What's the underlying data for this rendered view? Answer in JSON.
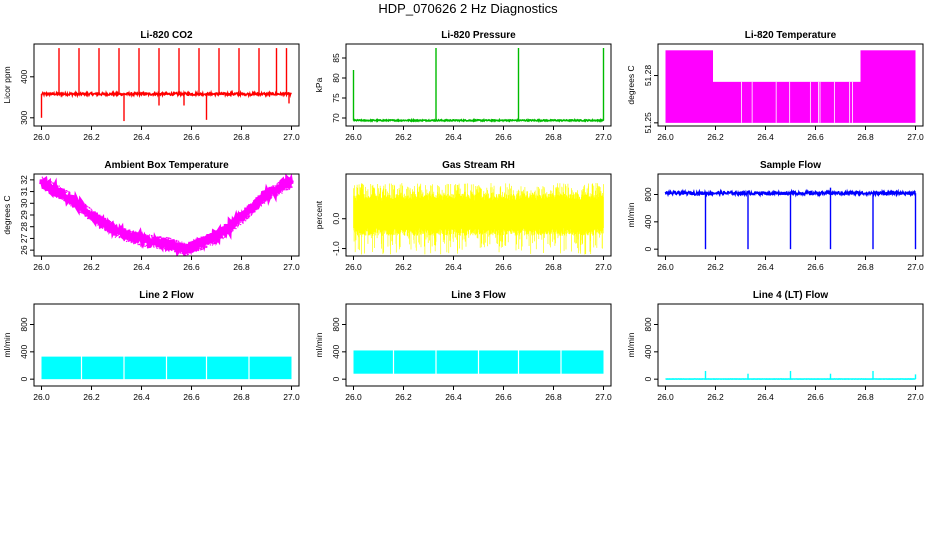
{
  "figure": {
    "title": "HDP_070626 2 Hz Diagnostics"
  },
  "chart_data": [
    {
      "type": "line",
      "title": "Li-820 CO2",
      "ylabel": "Licor ppm",
      "color": "#ff0000",
      "xlim": [
        25.97,
        27.03
      ],
      "ylim": [
        280,
        480
      ],
      "xticks": [
        "26.0",
        "26.2",
        "26.4",
        "26.6",
        "26.8",
        "27.0"
      ],
      "yticks": [
        300,
        400
      ],
      "baseline": 358,
      "noise": 3,
      "trend": "flat",
      "spikes_up": [
        [
          26.07,
          470
        ],
        [
          26.15,
          470
        ],
        [
          26.23,
          470
        ],
        [
          26.31,
          470
        ],
        [
          26.39,
          470
        ],
        [
          26.47,
          470
        ],
        [
          26.55,
          470
        ],
        [
          26.63,
          470
        ],
        [
          26.71,
          470
        ],
        [
          26.79,
          470
        ],
        [
          26.87,
          470
        ],
        [
          26.94,
          470
        ],
        [
          26.98,
          470
        ]
      ],
      "spikes_down": [
        [
          26.0,
          300
        ],
        [
          26.33,
          292
        ],
        [
          26.47,
          330
        ],
        [
          26.57,
          330
        ],
        [
          26.66,
          295
        ],
        [
          26.99,
          335
        ]
      ]
    },
    {
      "type": "line",
      "title": "Li-820 Pressure",
      "ylabel": "kPa",
      "color": "#00bb00",
      "xlim": [
        25.97,
        27.03
      ],
      "ylim": [
        68,
        88.5
      ],
      "xticks": [
        "26.0",
        "26.2",
        "26.4",
        "26.6",
        "26.8",
        "27.0"
      ],
      "yticks": [
        70,
        75,
        80,
        85
      ],
      "baseline": 69.4,
      "noise": 0.15,
      "trend": "flat",
      "spikes_up": [
        [
          26.0,
          82
        ],
        [
          26.33,
          87.5
        ],
        [
          26.66,
          87.5
        ],
        [
          27.0,
          87.5
        ]
      ],
      "spikes_down": []
    },
    {
      "type": "area",
      "title": "Li-820 Temperature",
      "ylabel": "degrees C",
      "color": "#ff00ff",
      "xlim": [
        25.97,
        27.03
      ],
      "ylim": [
        51.248,
        51.3
      ],
      "xticks": [
        "26.0",
        "26.2",
        "26.4",
        "26.6",
        "26.8",
        "27.0"
      ],
      "yticks": [
        "51.25",
        "51.28"
      ],
      "low": 51.25,
      "segments": [
        [
          26.0,
          26.19,
          51.296
        ],
        [
          26.19,
          26.78,
          51.276
        ],
        [
          26.78,
          27.0,
          51.296
        ]
      ]
    },
    {
      "type": "line",
      "title": "Ambient Box Temperature",
      "ylabel": "degrees C",
      "color": "#ff00ff",
      "xlim": [
        25.97,
        27.03
      ],
      "ylim": [
        25.5,
        32.5
      ],
      "xticks": [
        "26.0",
        "26.2",
        "26.4",
        "26.6",
        "26.8",
        "27.0"
      ],
      "yticks": [
        26,
        27,
        28,
        29,
        30,
        31,
        32
      ],
      "noise": 0.45,
      "trend": "curve",
      "curve": [
        [
          26.0,
          31.8
        ],
        [
          26.1,
          30.6
        ],
        [
          26.2,
          29.0
        ],
        [
          26.3,
          27.6
        ],
        [
          26.4,
          26.9
        ],
        [
          26.5,
          26.6
        ],
        [
          26.58,
          26.1
        ],
        [
          26.7,
          27.2
        ],
        [
          26.8,
          28.8
        ],
        [
          26.9,
          30.8
        ],
        [
          27.0,
          31.9
        ]
      ]
    },
    {
      "type": "area",
      "title": "Gas Stream RH",
      "ylabel": "percent",
      "color": "#ffff00",
      "xlim": [
        25.97,
        27.03
      ],
      "ylim": [
        -1.25,
        1.5
      ],
      "xticks": [
        "26.0",
        "26.2",
        "26.4",
        "26.6",
        "26.8",
        "27.0"
      ],
      "yticks": [
        "-1.0",
        "0.0"
      ],
      "band": [
        -0.3,
        0.6
      ],
      "noise_extent": [
        -1.2,
        1.2
      ]
    },
    {
      "type": "line",
      "title": "Sample Flow",
      "ylabel": "ml/min",
      "color": "#0000ff",
      "xlim": [
        25.97,
        27.03
      ],
      "ylim": [
        -100,
        1100
      ],
      "xticks": [
        "26.0",
        "26.2",
        "26.4",
        "26.6",
        "26.8",
        "27.0"
      ],
      "yticks": [
        0,
        400,
        800
      ],
      "baseline": 820,
      "noise": 25,
      "trend": "flat",
      "spikes_up": [
        [
          26.66,
          900
        ]
      ],
      "spikes_down": [
        [
          26.16,
          0
        ],
        [
          26.33,
          0
        ],
        [
          26.5,
          0
        ],
        [
          26.66,
          0
        ],
        [
          26.83,
          0
        ],
        [
          27.0,
          0
        ]
      ]
    },
    {
      "type": "area",
      "title": "Line 2 Flow",
      "ylabel": "ml/min",
      "color": "#00ffff",
      "xlim": [
        25.97,
        27.03
      ],
      "ylim": [
        -100,
        1100
      ],
      "xticks": [
        "26.0",
        "26.2",
        "26.4",
        "26.6",
        "26.8",
        "27.0"
      ],
      "yticks": [
        0,
        400,
        800
      ],
      "band": [
        0,
        330
      ],
      "gaps": [
        26.16,
        26.33,
        26.5,
        26.66,
        26.83
      ]
    },
    {
      "type": "area",
      "title": "Line 3 Flow",
      "ylabel": "ml/min",
      "color": "#00ffff",
      "xlim": [
        25.97,
        27.03
      ],
      "ylim": [
        -100,
        1100
      ],
      "xticks": [
        "26.0",
        "26.2",
        "26.4",
        "26.6",
        "26.8",
        "27.0"
      ],
      "yticks": [
        0,
        400,
        800
      ],
      "band": [
        80,
        420
      ],
      "gaps": [
        26.16,
        26.33,
        26.5,
        26.66,
        26.83
      ]
    },
    {
      "type": "line",
      "title": "Line 4 (LT) Flow",
      "ylabel": "ml/min",
      "color": "#00ffff",
      "xlim": [
        25.97,
        27.03
      ],
      "ylim": [
        -100,
        1100
      ],
      "xticks": [
        "26.0",
        "26.2",
        "26.4",
        "26.6",
        "26.8",
        "27.0"
      ],
      "yticks": [
        0,
        400,
        800
      ],
      "baseline": 2,
      "noise": 1,
      "trend": "flat",
      "spikes_up": [
        [
          26.16,
          120
        ],
        [
          26.33,
          80
        ],
        [
          26.5,
          120
        ],
        [
          26.66,
          80
        ],
        [
          26.83,
          120
        ],
        [
          27.0,
          70
        ]
      ],
      "spikes_down": []
    }
  ]
}
